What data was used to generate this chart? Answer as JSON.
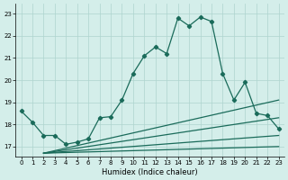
{
  "xlabel": "Humidex (Indice chaleur)",
  "background_color": "#d4eeea",
  "line_color": "#1a6b5a",
  "grid_color": "#aed4ce",
  "xlim": [
    -0.5,
    23.5
  ],
  "ylim": [
    16.55,
    23.45
  ],
  "yticks": [
    17,
    18,
    19,
    20,
    21,
    22,
    23
  ],
  "xticks": [
    0,
    1,
    2,
    3,
    4,
    5,
    6,
    7,
    8,
    9,
    10,
    11,
    12,
    13,
    14,
    15,
    16,
    17,
    18,
    19,
    20,
    21,
    22,
    23
  ],
  "main_x": [
    0,
    1,
    2,
    3,
    4,
    5,
    6,
    7,
    8,
    9,
    10,
    11,
    12,
    13,
    14,
    15,
    16,
    17,
    18,
    19,
    20,
    21,
    22,
    23
  ],
  "main_y": [
    18.6,
    18.1,
    17.5,
    17.5,
    17.1,
    17.2,
    17.35,
    18.3,
    18.35,
    19.1,
    20.3,
    21.1,
    21.5,
    21.2,
    22.8,
    22.45,
    22.85,
    22.65,
    20.3,
    19.1,
    19.9,
    18.5,
    18.4,
    17.8
  ],
  "straight_lines": [
    {
      "x": [
        2,
        23
      ],
      "y": [
        16.7,
        17.0
      ]
    },
    {
      "x": [
        2,
        23
      ],
      "y": [
        16.7,
        17.5
      ]
    },
    {
      "x": [
        2,
        23
      ],
      "y": [
        16.7,
        18.3
      ]
    },
    {
      "x": [
        2,
        23
      ],
      "y": [
        16.7,
        19.1
      ]
    }
  ],
  "figsize": [
    3.2,
    2.0
  ],
  "dpi": 100
}
